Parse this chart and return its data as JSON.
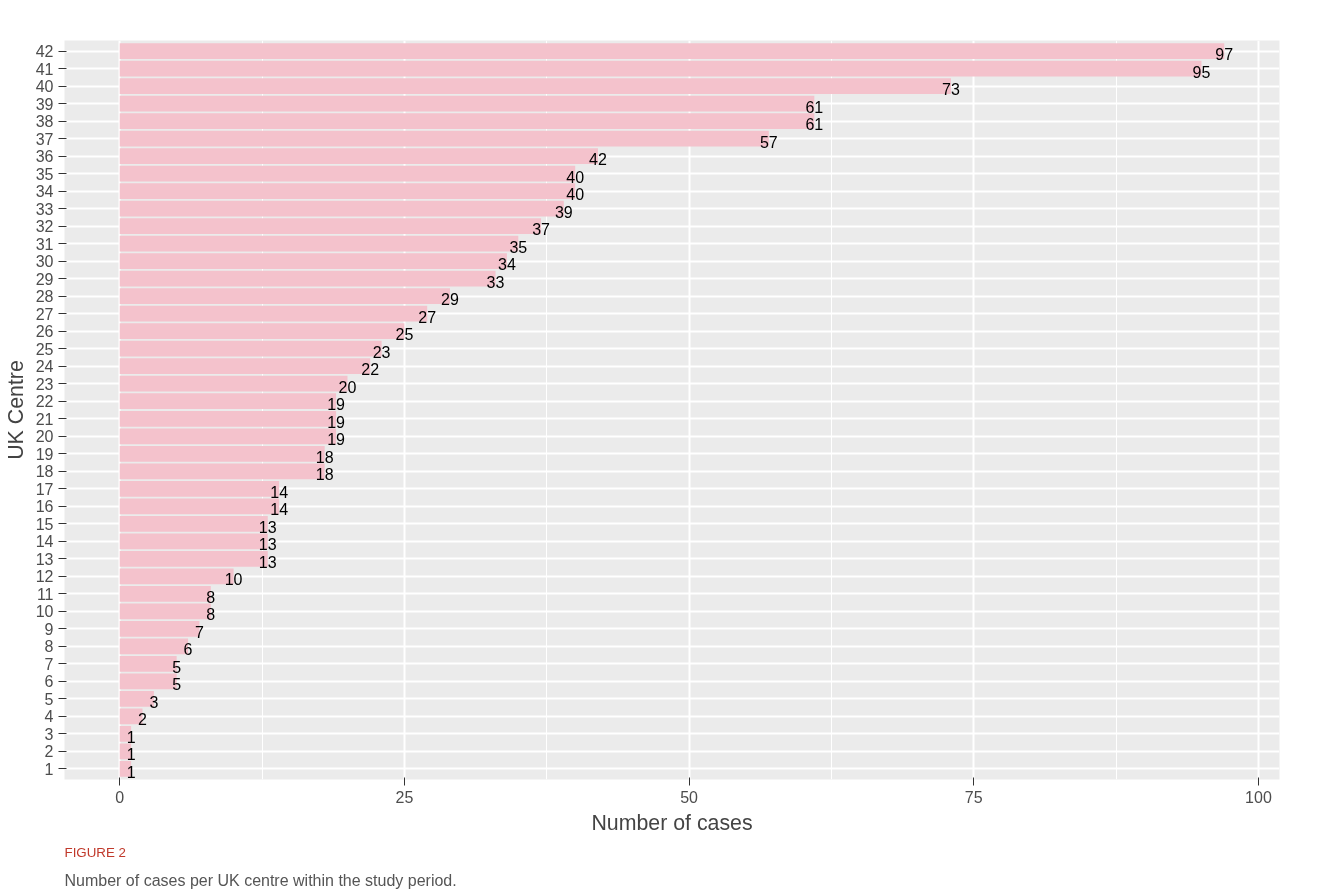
{
  "chart_data": {
    "type": "bar",
    "orientation": "horizontal",
    "xlabel": "Number of cases",
    "ylabel": "UK Centre",
    "categories": [
      "42",
      "41",
      "40",
      "39",
      "38",
      "37",
      "36",
      "35",
      "34",
      "33",
      "32",
      "31",
      "30",
      "29",
      "28",
      "27",
      "26",
      "25",
      "24",
      "23",
      "22",
      "21",
      "20",
      "19",
      "18",
      "17",
      "16",
      "15",
      "14",
      "13",
      "12",
      "11",
      "10",
      "9",
      "8",
      "7",
      "6",
      "5",
      "4",
      "3",
      "2",
      "1"
    ],
    "values": [
      97,
      95,
      73,
      61,
      61,
      57,
      42,
      40,
      40,
      39,
      37,
      35,
      34,
      33,
      29,
      27,
      25,
      23,
      22,
      20,
      19,
      19,
      19,
      18,
      18,
      14,
      14,
      13,
      13,
      13,
      10,
      8,
      8,
      7,
      6,
      5,
      5,
      3,
      2,
      1,
      1,
      1
    ],
    "color": "#f4c2cc",
    "data_labels": true,
    "xlim": [
      -4.85,
      101.85
    ],
    "xticks": [
      0,
      25,
      50,
      75,
      100
    ],
    "grid": true,
    "annotations": [
      "FIGURE 2",
      "Number of cases per UK centre within the study period."
    ]
  }
}
